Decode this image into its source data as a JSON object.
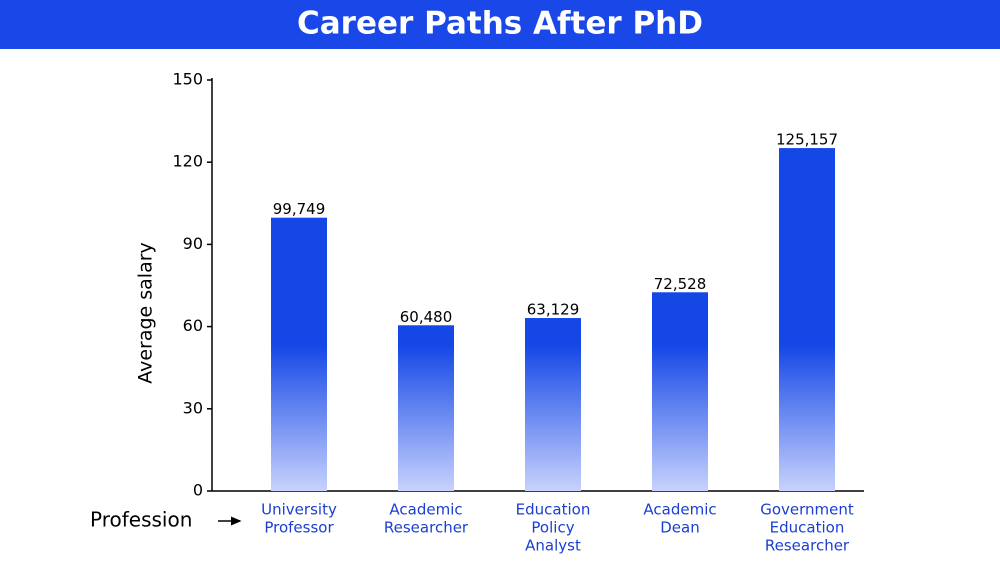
{
  "chart_data": {
    "type": "bar",
    "title": "Career Paths After PhD",
    "y_label": "Average salary",
    "x_label": "Profession",
    "categories": [
      [
        "University",
        "Professor"
      ],
      [
        "Academic",
        "Researcher"
      ],
      [
        "Education",
        "Policy",
        "Analyst"
      ],
      [
        "Academic",
        "Dean"
      ],
      [
        "Government",
        "Education",
        "Researcher"
      ]
    ],
    "values": [
      99.749,
      60.48,
      63.129,
      72.528,
      125.157
    ],
    "value_labels": [
      "99,749",
      "60,480",
      "63,129",
      "72,528",
      "125,157"
    ],
    "color": "#1447e6",
    "ylim": [
      0,
      150
    ],
    "yticks": [
      0,
      30,
      60,
      90,
      120,
      150
    ]
  }
}
